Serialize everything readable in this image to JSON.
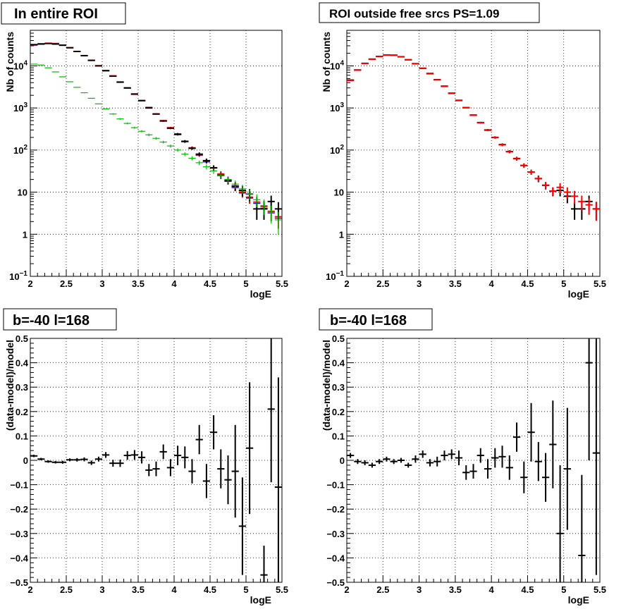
{
  "chart_data": [
    {
      "type": "scatter",
      "title": "In entire ROI",
      "xlabel": "logE",
      "ylabel": "Nb of counts",
      "xlim": [
        2,
        5.5
      ],
      "ylim": [
        0.1,
        70000
      ],
      "yscale": "log",
      "grid": true,
      "xticks": [
        "2",
        "2.5",
        "3",
        "3.5",
        "4",
        "4.5",
        "5",
        "5.5"
      ],
      "yticks": [
        "10^-1",
        "1",
        "10",
        "10^2",
        "10^3",
        "10^4"
      ],
      "x": [
        2.05,
        2.15,
        2.25,
        2.35,
        2.45,
        2.55,
        2.65,
        2.75,
        2.85,
        2.95,
        3.05,
        3.15,
        3.25,
        3.35,
        3.45,
        3.55,
        3.65,
        3.75,
        3.85,
        3.95,
        4.05,
        4.15,
        4.25,
        4.35,
        4.45,
        4.55,
        4.65,
        4.75,
        4.85,
        4.95,
        5.05,
        5.15,
        5.25,
        5.35,
        5.45
      ],
      "series": [
        {
          "color": "#0000ff",
          "values": [
            31000,
            33000,
            34000,
            33500,
            31000,
            27000,
            22000,
            17500,
            13500,
            10000,
            7600,
            5700,
            4100,
            2950,
            2100,
            1480,
            1020,
            710,
            490,
            330,
            230,
            158,
            110,
            75,
            52,
            37,
            26,
            18,
            12.8,
            9.5,
            7.2,
            5.4,
            4.1,
            3.2,
            2.4
          ]
        },
        {
          "color": "#ff0000",
          "values": [
            31500,
            33500,
            34500,
            34000,
            31000,
            27000,
            22000,
            17500,
            13600,
            10100,
            7700,
            5800,
            4150,
            2980,
            2120,
            1490,
            1030,
            720,
            500,
            340,
            235,
            162,
            113,
            77,
            54,
            38,
            27,
            19,
            13.5,
            10.0,
            7.6,
            5.8,
            4.5,
            3.5,
            2.6
          ],
          "err": [
            0.01,
            0.01,
            0.01,
            0.01,
            0.01,
            0.01,
            0.01,
            0.01,
            0.01,
            0.01,
            0.01,
            0.015,
            0.015,
            0.02,
            0.02,
            0.025,
            0.03,
            0.035,
            0.04,
            0.05,
            0.06,
            0.07,
            0.08,
            0.1,
            0.12,
            0.14,
            0.16,
            0.19,
            0.22,
            0.26,
            0.3,
            0.34,
            0.38,
            0.42,
            0.48
          ]
        },
        {
          "color": "#000000",
          "values": [
            32000,
            33000,
            34000,
            33000,
            31000,
            27000,
            22000,
            17500,
            13500,
            10000,
            7700,
            5700,
            4100,
            3000,
            2150,
            1500,
            1000,
            720,
            490,
            330,
            240,
            160,
            110,
            80,
            56,
            38,
            25,
            19,
            14,
            11,
            9,
            4,
            4,
            6,
            4
          ],
          "err": [
            0.01,
            0.01,
            0.01,
            0.01,
            0.01,
            0.01,
            0.01,
            0.01,
            0.01,
            0.01,
            0.01,
            0.015,
            0.015,
            0.02,
            0.02,
            0.025,
            0.03,
            0.035,
            0.04,
            0.05,
            0.06,
            0.07,
            0.08,
            0.1,
            0.12,
            0.14,
            0.18,
            0.2,
            0.24,
            0.28,
            0.32,
            0.45,
            0.45,
            0.38,
            0.45
          ]
        },
        {
          "color": "#00bb00",
          "values": [
            11000,
            10500,
            9000,
            7200,
            5500,
            4200,
            3100,
            2300,
            1700,
            1250,
            950,
            720,
            550,
            430,
            340,
            280,
            230,
            190,
            155,
            125,
            100,
            80,
            64,
            50,
            40,
            32,
            25,
            20,
            15.5,
            12,
            9,
            6.6,
            4.8,
            3.3,
            2.2
          ],
          "err": [
            0.01,
            0.01,
            0.01,
            0.01,
            0.015,
            0.015,
            0.02,
            0.02,
            0.025,
            0.03,
            0.035,
            0.04,
            0.045,
            0.05,
            0.055,
            0.06,
            0.065,
            0.07,
            0.075,
            0.085,
            0.09,
            0.1,
            0.11,
            0.12,
            0.14,
            0.15,
            0.17,
            0.19,
            0.22,
            0.25,
            0.29,
            0.34,
            0.4,
            0.46,
            0.55
          ]
        }
      ]
    },
    {
      "type": "scatter",
      "title": "ROI outside free srcs PS=1.09",
      "xlabel": "logE",
      "ylabel": "Nb of counts",
      "xlim": [
        2,
        5.5
      ],
      "ylim": [
        0.1,
        70000
      ],
      "yscale": "log",
      "grid": true,
      "xticks": [
        "2",
        "2.5",
        "3",
        "3.5",
        "4",
        "4.5",
        "5",
        "5.5"
      ],
      "yticks": [
        "10^-1",
        "1",
        "10",
        "10^2",
        "10^3",
        "10^4"
      ],
      "x": [
        2.05,
        2.15,
        2.25,
        2.35,
        2.45,
        2.55,
        2.65,
        2.75,
        2.85,
        2.95,
        3.05,
        3.15,
        3.25,
        3.35,
        3.45,
        3.55,
        3.65,
        3.75,
        3.85,
        3.95,
        4.05,
        4.15,
        4.25,
        4.35,
        4.45,
        4.55,
        4.65,
        4.75,
        4.85,
        4.95,
        5.05,
        5.15,
        5.25,
        5.35,
        5.45
      ],
      "series": [
        {
          "color": "#000000",
          "values": [
            4600,
            8000,
            11500,
            14500,
            16800,
            18200,
            18000,
            16500,
            14000,
            11300,
            8800,
            6600,
            4700,
            3300,
            2250,
            1520,
            1020,
            680,
            450,
            300,
            200,
            135,
            92,
            63,
            43,
            30,
            21,
            14.5,
            10.5,
            11,
            8,
            4,
            4,
            6,
            4
          ],
          "err": [
            0.01,
            0.01,
            0.01,
            0.01,
            0.01,
            0.01,
            0.01,
            0.01,
            0.01,
            0.01,
            0.01,
            0.015,
            0.015,
            0.02,
            0.02,
            0.025,
            0.03,
            0.035,
            0.04,
            0.05,
            0.06,
            0.07,
            0.08,
            0.1,
            0.12,
            0.14,
            0.18,
            0.2,
            0.24,
            0.28,
            0.32,
            0.45,
            0.45,
            0.38,
            0.45
          ]
        },
        {
          "color": "#ff0000",
          "values": [
            4500,
            7900,
            11400,
            14400,
            16700,
            18100,
            17900,
            16400,
            13900,
            11200,
            8700,
            6500,
            4650,
            3250,
            2220,
            1500,
            1010,
            670,
            445,
            295,
            198,
            133,
            91,
            62,
            43,
            30,
            21,
            14.7,
            10.6,
            13,
            10,
            8,
            6,
            5,
            4
          ],
          "err": [
            0.01,
            0.01,
            0.01,
            0.01,
            0.01,
            0.01,
            0.01,
            0.01,
            0.01,
            0.01,
            0.01,
            0.015,
            0.015,
            0.02,
            0.02,
            0.025,
            0.03,
            0.035,
            0.04,
            0.05,
            0.06,
            0.07,
            0.08,
            0.1,
            0.12,
            0.14,
            0.16,
            0.19,
            0.22,
            0.26,
            0.3,
            0.34,
            0.38,
            0.42,
            0.48
          ]
        }
      ]
    },
    {
      "type": "scatter",
      "title": "b=-40 l=168",
      "xlabel": "logE",
      "ylabel": "(data-model)/model",
      "xlim": [
        2,
        5.5
      ],
      "ylim": [
        -0.5,
        0.5
      ],
      "grid": true,
      "xticks": [
        "2",
        "2.5",
        "3",
        "3.5",
        "4",
        "4.5",
        "5",
        "5.5"
      ],
      "yticks": [
        "-0.5",
        "-0.4",
        "-0.3",
        "-0.2",
        "-0.1",
        "0",
        "0.1",
        "0.2",
        "0.3",
        "0.4",
        "0.5"
      ],
      "x": [
        2.05,
        2.15,
        2.25,
        2.35,
        2.45,
        2.55,
        2.65,
        2.75,
        2.85,
        2.95,
        3.05,
        3.15,
        3.25,
        3.35,
        3.45,
        3.55,
        3.65,
        3.75,
        3.85,
        3.95,
        4.05,
        4.15,
        4.25,
        4.35,
        4.45,
        4.55,
        4.65,
        4.75,
        4.85,
        4.95,
        5.05,
        5.15,
        5.25,
        5.35,
        5.45
      ],
      "series": [
        {
          "color": "#000000",
          "values": [
            0.018,
            0.005,
            -0.005,
            -0.008,
            -0.008,
            0.002,
            0.002,
            0.004,
            -0.01,
            0.005,
            0.022,
            -0.012,
            -0.012,
            0.02,
            0.022,
            0.012,
            -0.04,
            -0.035,
            0.035,
            -0.03,
            0.02,
            0.012,
            -0.045,
            0.085,
            -0.085,
            0.115,
            -0.035,
            -0.08,
            -0.045,
            -0.27,
            0.05,
            null,
            -0.47,
            0.21,
            -0.11
          ],
          "err": [
            0.005,
            0.005,
            0.005,
            0.005,
            0.006,
            0.006,
            0.007,
            0.008,
            0.009,
            0.01,
            0.012,
            0.014,
            0.015,
            0.018,
            0.02,
            0.025,
            0.025,
            0.03,
            0.03,
            0.035,
            0.04,
            0.045,
            0.05,
            0.06,
            0.07,
            0.07,
            0.08,
            0.1,
            0.19,
            0.2,
            0.27,
            null,
            0.12,
            0.3,
            0.45
          ]
        }
      ]
    },
    {
      "type": "scatter",
      "title": "b=-40 l=168",
      "xlabel": "logE",
      "ylabel": "(data-model)/model",
      "xlim": [
        2,
        5.5
      ],
      "ylim": [
        -0.5,
        0.5
      ],
      "grid": true,
      "xticks": [
        "2",
        "2.5",
        "3",
        "3.5",
        "4",
        "4.5",
        "5",
        "5.5"
      ],
      "yticks": [
        "-0.5",
        "-0.4",
        "-0.3",
        "-0.2",
        "-0.1",
        "0",
        "0.1",
        "0.2",
        "0.3",
        "0.4",
        "0.5"
      ],
      "x": [
        2.05,
        2.15,
        2.25,
        2.35,
        2.45,
        2.55,
        2.65,
        2.75,
        2.85,
        2.95,
        3.05,
        3.15,
        3.25,
        3.35,
        3.45,
        3.55,
        3.65,
        3.75,
        3.85,
        3.95,
        4.05,
        4.15,
        4.25,
        4.35,
        4.45,
        4.55,
        4.65,
        4.75,
        4.85,
        4.95,
        5.05,
        5.15,
        5.25,
        5.35,
        5.45
      ],
      "series": [
        {
          "color": "#000000",
          "values": [
            0.02,
            -0.005,
            -0.01,
            -0.02,
            -0.005,
            0.005,
            -0.005,
            0.0,
            -0.02,
            0.005,
            0.025,
            -0.01,
            -0.005,
            0.02,
            0.025,
            0.01,
            -0.05,
            -0.045,
            0.02,
            -0.035,
            0.01,
            0.015,
            -0.03,
            0.095,
            -0.07,
            0.115,
            -0.005,
            -0.07,
            0.065,
            -0.3,
            -0.035,
            null,
            -0.39,
            0.4,
            0.03
          ],
          "err": [
            0.01,
            0.01,
            0.01,
            0.01,
            0.01,
            0.01,
            0.01,
            0.01,
            0.01,
            0.015,
            0.015,
            0.015,
            0.02,
            0.02,
            0.02,
            0.03,
            0.03,
            0.03,
            0.03,
            0.04,
            0.04,
            0.045,
            0.05,
            0.06,
            0.065,
            0.12,
            0.08,
            0.1,
            0.18,
            0.28,
            0.25,
            null,
            0.33,
            0.4,
            0.5
          ]
        }
      ]
    }
  ]
}
